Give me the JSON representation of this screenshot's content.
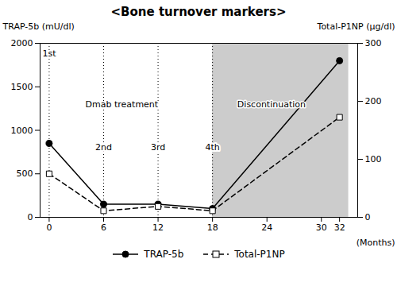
{
  "chart_data": {
    "type": "line",
    "title": "<Bone turnover markers>",
    "x_label": "(Months)",
    "y_label": "TRAP-5b (mU/dl)",
    "y2_label": "Total-P1NP (μg/dl)",
    "xlim": [
      -1,
      34
    ],
    "xticks": [
      0,
      6,
      12,
      18,
      24,
      30,
      32
    ],
    "ylim": [
      0,
      2000
    ],
    "yticks": [
      0,
      500,
      1000,
      1500,
      2000
    ],
    "y2lim": [
      0,
      300
    ],
    "y2ticks": [
      0,
      100,
      200,
      300
    ],
    "grid": false,
    "legend": "bottom",
    "series": [
      {
        "name": "TRAP-5b",
        "x": [
          0,
          6,
          12,
          18,
          32
        ],
        "values": [
          850,
          150,
          150,
          100,
          1800
        ],
        "color": "#000000",
        "marker": "circle",
        "line_style": "solid"
      },
      {
        "name": "Total-P1NP",
        "axis": "y2",
        "x": [
          0,
          6,
          12,
          18,
          32
        ],
        "values": [
          75,
          11.25,
          18.75,
          11.25,
          172.5
        ],
        "color": "#000000",
        "marker": "square",
        "line_style": "dashed"
      }
    ],
    "shaded_region": {
      "x": [
        18,
        33
      ],
      "color": "#cccccc"
    },
    "vlines": [
      {
        "x": 0,
        "label": "1st",
        "y": 1880
      },
      {
        "x": 6,
        "label": "2nd",
        "y": 800
      },
      {
        "x": 12,
        "label": "3rd",
        "y": 800
      },
      {
        "x": 18,
        "label": "4th",
        "y": 800
      }
    ],
    "annotations": [
      {
        "text": "Dmab treatment",
        "x": 8,
        "y": 1300
      },
      {
        "text": "Discontinuation",
        "x": 24.5,
        "y": 1300
      }
    ]
  }
}
